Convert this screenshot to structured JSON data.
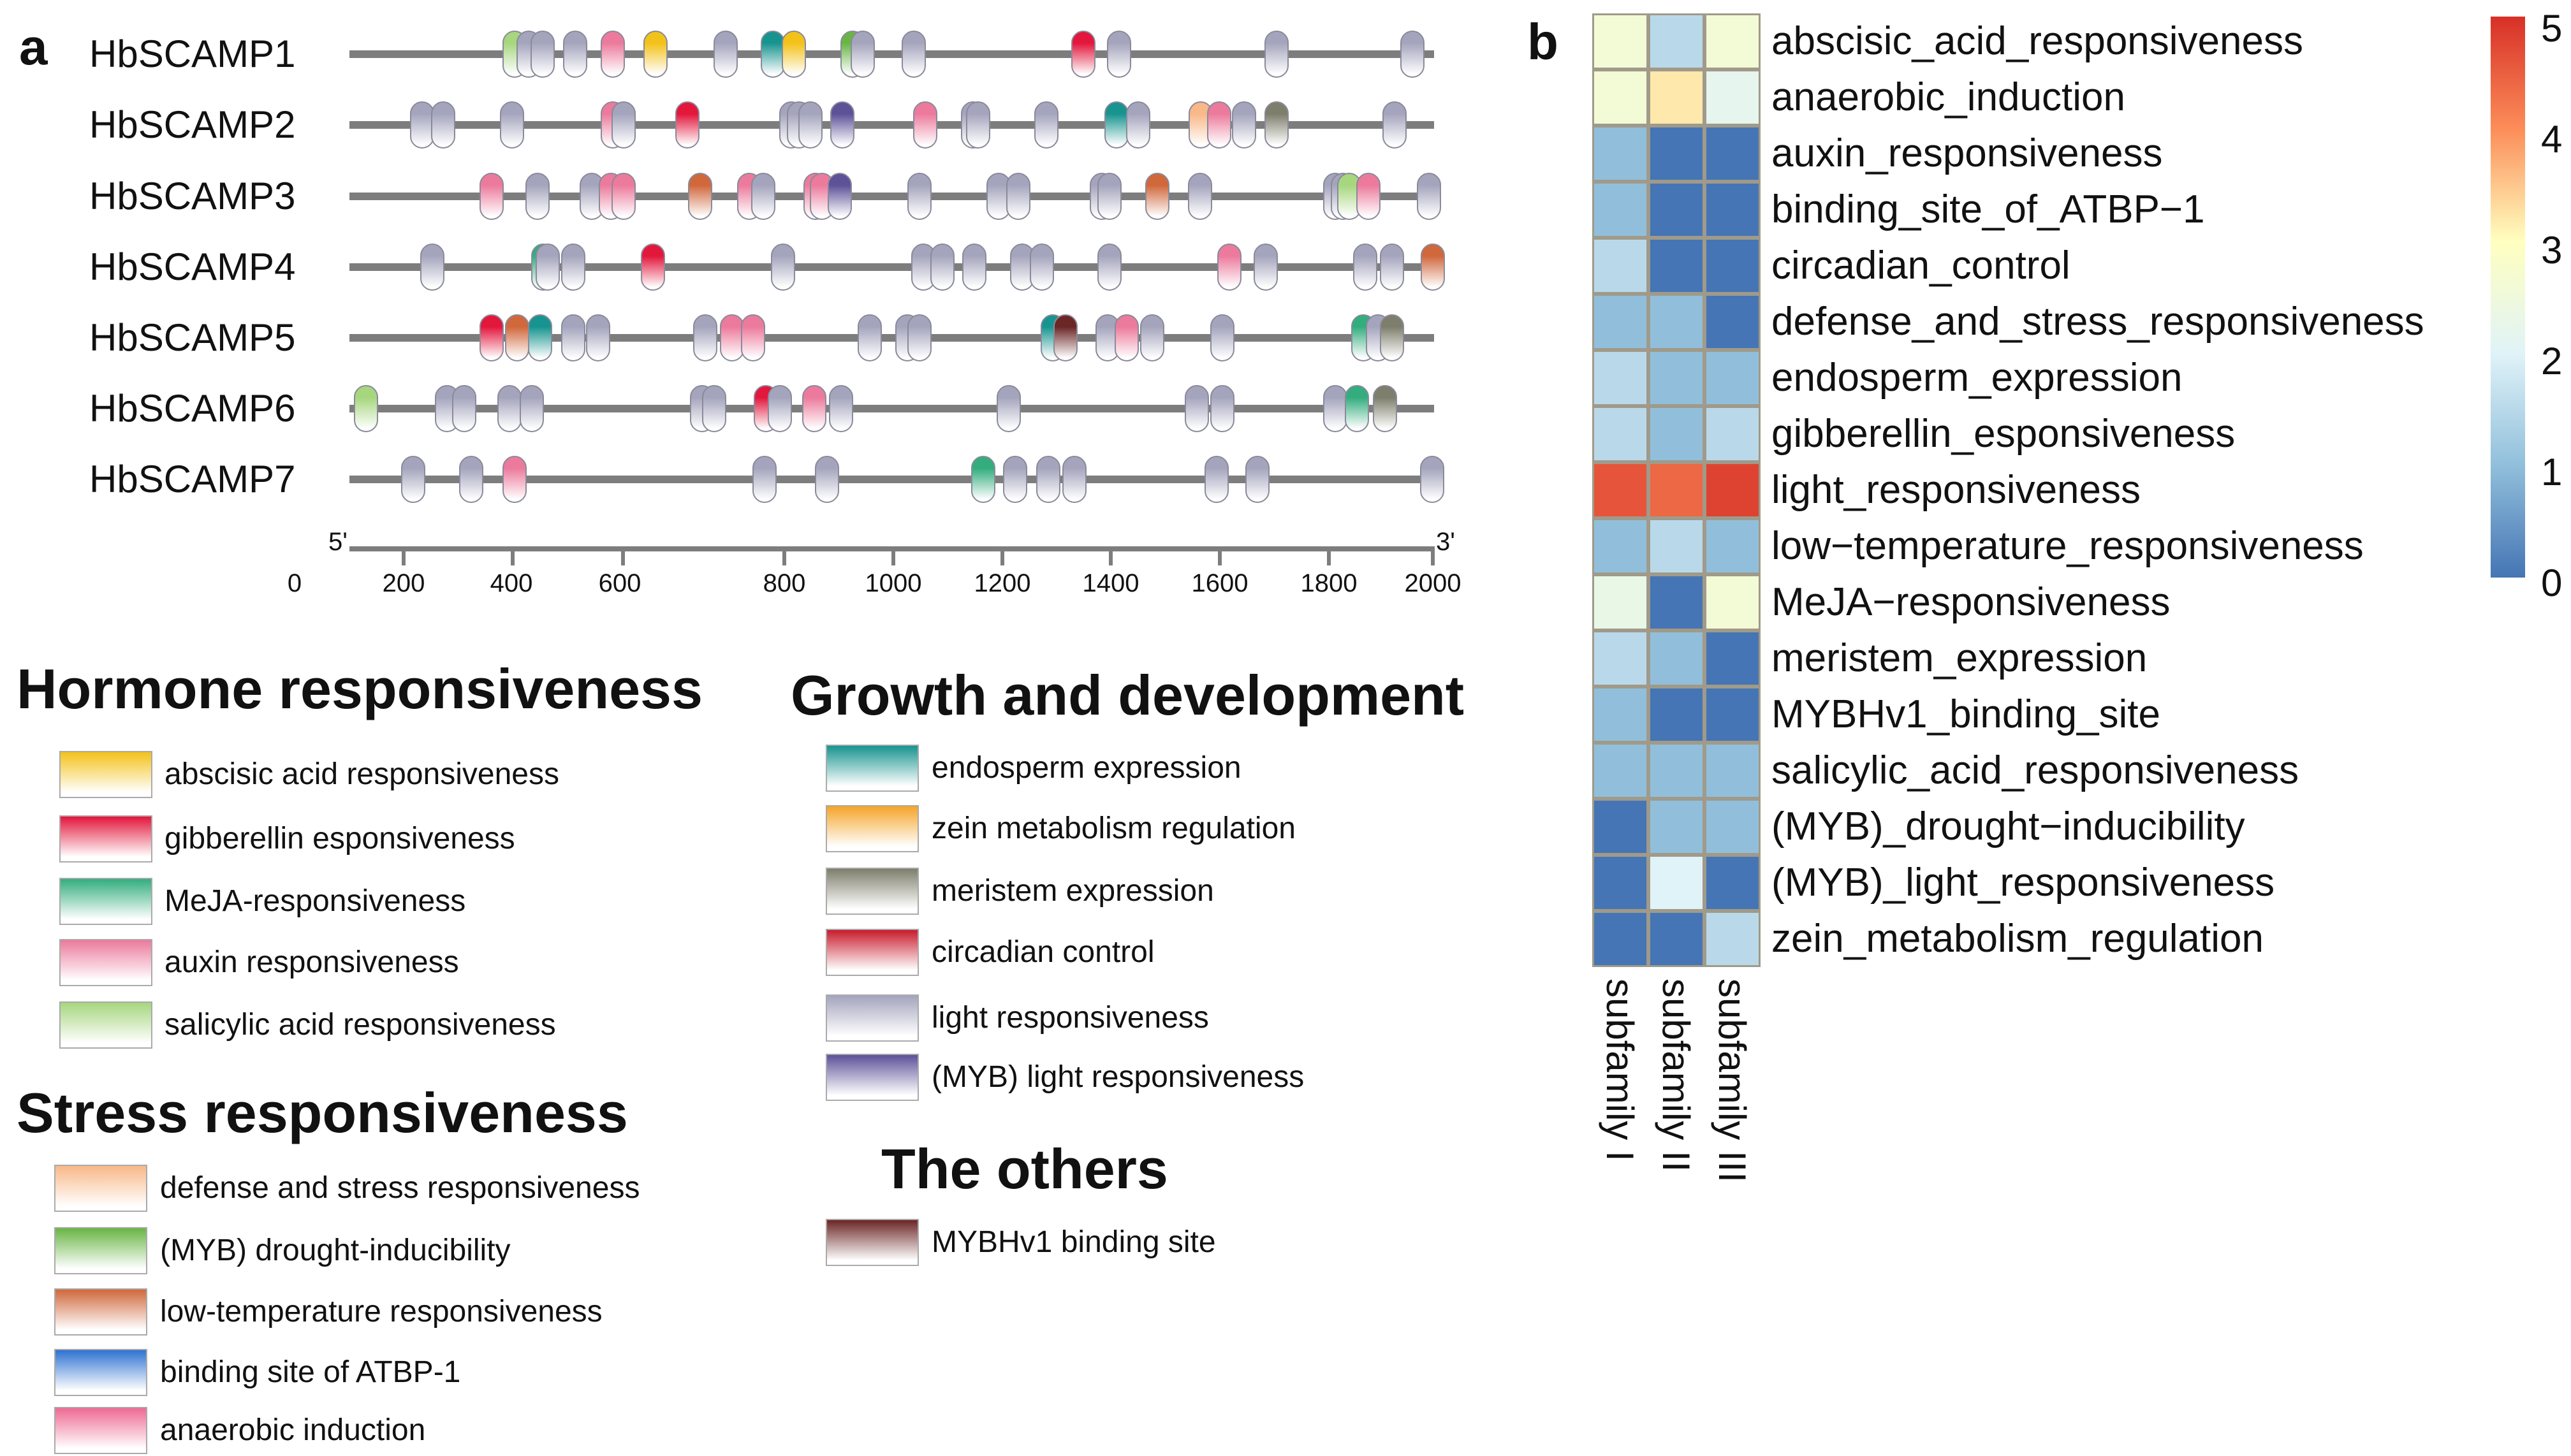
{
  "panel_a": {
    "letter": "a",
    "axis": {
      "start_label": "5'",
      "end_label": "3'",
      "ticks": [
        "0",
        "200",
        "400",
        "600",
        "800",
        "1000",
        "1200",
        "1400",
        "1600",
        "1800",
        "2000"
      ]
    },
    "genes": [
      {
        "name": "HbSCAMP1",
        "elements": [
          [
            304,
            "salicylic"
          ],
          [
            330,
            "light"
          ],
          [
            356,
            "light"
          ],
          [
            416,
            "light"
          ],
          [
            486,
            "auxin"
          ],
          [
            564,
            "abscisic"
          ],
          [
            694,
            "light"
          ],
          [
            781,
            "endosperm"
          ],
          [
            820,
            "abscisic"
          ],
          [
            928,
            "drought"
          ],
          [
            947,
            "light"
          ],
          [
            1041,
            "light"
          ],
          [
            1353,
            "gibberellin"
          ],
          [
            1419,
            "light"
          ],
          [
            1709,
            "light"
          ],
          [
            1960,
            "light"
          ]
        ]
      },
      {
        "name": "HbSCAMP2",
        "elements": [
          [
            134,
            "light"
          ],
          [
            173,
            "light"
          ],
          [
            300,
            "light"
          ],
          [
            486,
            "auxin"
          ],
          [
            506,
            "light"
          ],
          [
            623,
            "gibberellin"
          ],
          [
            815,
            "light"
          ],
          [
            829,
            "light"
          ],
          [
            850,
            "light"
          ],
          [
            909,
            "myb_light"
          ],
          [
            1062,
            "auxin"
          ],
          [
            1150,
            "light"
          ],
          [
            1159,
            "light"
          ],
          [
            1285,
            "light"
          ],
          [
            1415,
            "endosperm"
          ],
          [
            1455,
            "light"
          ],
          [
            1570,
            "defense"
          ],
          [
            1604,
            "auxin"
          ],
          [
            1650,
            "light"
          ],
          [
            1710,
            "meristem"
          ],
          [
            1927,
            "light"
          ]
        ]
      },
      {
        "name": "HbSCAMP3",
        "elements": [
          [
            262,
            "auxin"
          ],
          [
            347,
            "light"
          ],
          [
            447,
            "light"
          ],
          [
            482,
            "auxin"
          ],
          [
            505,
            "auxin"
          ],
          [
            647,
            "low_temp"
          ],
          [
            737,
            "auxin"
          ],
          [
            763,
            "light"
          ],
          [
            860,
            "auxin"
          ],
          [
            871,
            "auxin"
          ],
          [
            904,
            "myb_light"
          ],
          [
            1051,
            "light"
          ],
          [
            1197,
            "light"
          ],
          [
            1233,
            "light"
          ],
          [
            1388,
            "light"
          ],
          [
            1402,
            "light"
          ],
          [
            1490,
            "low_temp"
          ],
          [
            1568,
            "light"
          ],
          [
            1818,
            "light"
          ],
          [
            1832,
            "light"
          ],
          [
            1844,
            "salicylic"
          ],
          [
            1879,
            "auxin"
          ],
          [
            1991,
            "light"
          ]
        ]
      },
      {
        "name": "HbSCAMP4",
        "elements": [
          [
            153,
            "light"
          ],
          [
            357,
            "meja"
          ],
          [
            366,
            "light"
          ],
          [
            413,
            "light"
          ],
          [
            560,
            "gibberellin"
          ],
          [
            800,
            "light"
          ],
          [
            1058,
            "light"
          ],
          [
            1093,
            "light"
          ],
          [
            1152,
            "light"
          ],
          [
            1240,
            "light"
          ],
          [
            1277,
            "light"
          ],
          [
            1402,
            "light"
          ],
          [
            1622,
            "auxin"
          ],
          [
            1690,
            "light"
          ],
          [
            1873,
            "light"
          ],
          [
            1922,
            "light"
          ],
          [
            1998,
            "low_temp"
          ]
        ]
      },
      {
        "name": "HbSCAMP5",
        "elements": [
          [
            262,
            "gibberellin"
          ],
          [
            309,
            "low_temp"
          ],
          [
            352,
            "endosperm"
          ],
          [
            413,
            "light"
          ],
          [
            458,
            "light"
          ],
          [
            656,
            "light"
          ],
          [
            705,
            "auxin"
          ],
          [
            744,
            "auxin"
          ],
          [
            959,
            "light"
          ],
          [
            1029,
            "light"
          ],
          [
            1051,
            "light"
          ],
          [
            1297,
            "endosperm"
          ],
          [
            1320,
            "mybhv1"
          ],
          [
            1398,
            "light"
          ],
          [
            1433,
            "auxin"
          ],
          [
            1480,
            "light"
          ],
          [
            1610,
            "light"
          ],
          [
            1870,
            "meja"
          ],
          [
            1896,
            "light"
          ],
          [
            1922,
            "meristem"
          ]
        ]
      },
      {
        "name": "HbSCAMP6",
        "elements": [
          [
            31,
            "salicylic"
          ],
          [
            180,
            "light"
          ],
          [
            212,
            "light"
          ],
          [
            295,
            "light"
          ],
          [
            336,
            "light"
          ],
          [
            650,
            "light"
          ],
          [
            673,
            "light"
          ],
          [
            768,
            "gibberellin"
          ],
          [
            794,
            "light"
          ],
          [
            857,
            "auxin"
          ],
          [
            907,
            "light"
          ],
          [
            1216,
            "light"
          ],
          [
            1563,
            "light"
          ],
          [
            1610,
            "light"
          ],
          [
            1818,
            "light"
          ],
          [
            1858,
            "meja"
          ],
          [
            1910,
            "meristem"
          ]
        ]
      },
      {
        "name": "HbSCAMP7",
        "elements": [
          [
            118,
            "light"
          ],
          [
            224,
            "light"
          ],
          [
            305,
            "auxin"
          ],
          [
            765,
            "light"
          ],
          [
            881,
            "light"
          ],
          [
            1169,
            "meja"
          ],
          [
            1228,
            "light"
          ],
          [
            1289,
            "light"
          ],
          [
            1337,
            "light"
          ],
          [
            1599,
            "light"
          ],
          [
            1674,
            "light"
          ],
          [
            1997,
            "light"
          ]
        ]
      }
    ]
  },
  "element_colors": {
    "abscisic": "#f3c21a",
    "gibberellin": "#e3163c",
    "meja": "#33ad7e",
    "auxin": "#ec7a9c",
    "salicylic": "#a6d67e",
    "defense": "#f8b888",
    "drought": "#69b544",
    "low_temp": "#d0683c",
    "atbp1": "#2f72d2",
    "anaerobic": "#ee6a93",
    "endosperm": "#17948f",
    "zein": "#f5a429",
    "meristem": "#7e7e6c",
    "circadian": "#c81c2c",
    "light": "#a4a4bd",
    "myb_light": "#5d5198",
    "mybhv1": "#6b2626"
  },
  "legend": {
    "groups": [
      {
        "title": "Hormone responsiveness",
        "items": [
          [
            "abscisic acid responsiveness",
            "abscisic"
          ],
          [
            "gibberellin esponsiveness",
            "gibberellin"
          ],
          [
            "MeJA-responsiveness",
            "meja"
          ],
          [
            "auxin responsiveness",
            "auxin"
          ],
          [
            "salicylic acid responsiveness",
            "salicylic"
          ]
        ]
      },
      {
        "title": "Stress responsiveness",
        "items": [
          [
            "defense and stress responsiveness",
            "defense"
          ],
          [
            "(MYB) drought-inducibility",
            "drought"
          ],
          [
            "low-temperature responsiveness",
            "low_temp"
          ],
          [
            "binding site of ATBP-1",
            "atbp1"
          ],
          [
            "anaerobic induction",
            "anaerobic"
          ]
        ]
      },
      {
        "title": "Growth and development",
        "items": [
          [
            "endosperm expression",
            "endosperm"
          ],
          [
            "zein metabolism regulation",
            "zein"
          ],
          [
            "meristem expression",
            "meristem"
          ],
          [
            "circadian control",
            "circadian"
          ],
          [
            "light responsiveness",
            "light"
          ],
          [
            "(MYB) light responsiveness",
            "myb_light"
          ]
        ]
      },
      {
        "title": "The others",
        "items": [
          [
            "MYBHv1 binding site",
            "mybhv1"
          ]
        ]
      }
    ]
  },
  "chart_data": {
    "type": "heatmap",
    "panel_letter": "b",
    "columns": [
      "subfamily I",
      "subfamily II",
      "subfamily III"
    ],
    "rows": [
      "abscisic_acid_responsiveness",
      "anaerobic_induction",
      "auxin_responsiveness",
      "binding_site_of_ATBP−1",
      "circadian_control",
      "defense_and_stress_responsiveness",
      "endosperm_expression",
      "gibberellin_esponsiveness",
      "light_responsiveness",
      "low−temperature_responsiveness",
      "MeJA−responsiveness",
      "meristem_expression",
      "MYBHv1_binding_site",
      "salicylic_acid_responsiveness",
      "(MYB)_drought−inducibility",
      "(MYB)_light_responsiveness",
      "zein_metabolism_regulation"
    ],
    "values": [
      [
        2.6,
        1.5,
        2.6
      ],
      [
        2.6,
        3.2,
        2.2
      ],
      [
        1,
        0,
        0
      ],
      [
        1,
        0,
        0
      ],
      [
        1.5,
        0,
        0
      ],
      [
        1,
        1,
        0
      ],
      [
        1.5,
        1,
        1
      ],
      [
        1.5,
        1,
        1.5
      ],
      [
        4.6,
        4.4,
        4.8
      ],
      [
        1,
        1.5,
        1
      ],
      [
        2.3,
        0,
        2.6
      ],
      [
        1.5,
        1,
        0
      ],
      [
        1,
        0,
        0
      ],
      [
        1,
        1,
        1
      ],
      [
        0,
        1,
        1
      ],
      [
        0,
        2,
        0
      ],
      [
        0,
        0,
        1.5
      ]
    ],
    "colorbar": {
      "range": [
        0,
        5
      ],
      "ticks": [
        "0",
        "1",
        "2",
        "3",
        "4",
        "5"
      ],
      "colors": [
        "#4575b4",
        "#91bfdb",
        "#e0f3f8",
        "#ffffbf",
        "#fc8d59",
        "#d73027"
      ]
    }
  }
}
